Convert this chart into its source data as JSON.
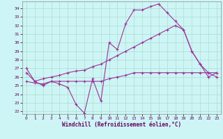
{
  "xlabel": "Windchill (Refroidissement éolien,°C)",
  "background_color": "#cef5f5",
  "grid_color": "#aaddcc",
  "line_color": "#993399",
  "xlim": [
    -0.5,
    23.5
  ],
  "ylim": [
    21.7,
    34.8
  ],
  "yticks": [
    22,
    23,
    24,
    25,
    26,
    27,
    28,
    29,
    30,
    31,
    32,
    33,
    34
  ],
  "xticks": [
    0,
    1,
    2,
    3,
    4,
    5,
    6,
    7,
    8,
    9,
    10,
    11,
    12,
    13,
    14,
    15,
    16,
    17,
    18,
    19,
    20,
    21,
    22,
    23
  ],
  "series1_x": [
    0,
    1,
    2,
    3,
    4,
    5,
    6,
    7,
    8,
    9,
    10,
    11,
    12,
    13,
    14,
    15,
    16,
    17,
    18,
    19,
    20,
    21,
    22,
    23
  ],
  "series1_y": [
    27.0,
    25.5,
    25.0,
    25.5,
    25.2,
    24.8,
    22.8,
    21.8,
    25.8,
    23.2,
    30.0,
    29.2,
    32.2,
    33.8,
    33.8,
    34.2,
    34.5,
    33.5,
    32.5,
    31.5,
    29.0,
    27.5,
    26.0,
    26.5
  ],
  "series2_x": [
    0,
    1,
    2,
    3,
    4,
    5,
    6,
    7,
    8,
    9,
    10,
    11,
    12,
    13,
    14,
    15,
    16,
    17,
    18,
    19,
    20,
    21,
    22,
    23
  ],
  "series2_y": [
    25.5,
    25.3,
    25.2,
    25.5,
    25.5,
    25.5,
    25.5,
    25.5,
    25.5,
    25.5,
    25.8,
    26.0,
    26.2,
    26.5,
    26.5,
    26.5,
    26.5,
    26.5,
    26.5,
    26.5,
    26.5,
    26.5,
    26.5,
    26.5
  ],
  "series3_x": [
    0,
    1,
    2,
    3,
    4,
    5,
    6,
    7,
    8,
    9,
    10,
    11,
    12,
    13,
    14,
    15,
    16,
    17,
    18,
    19,
    20,
    21,
    22,
    23
  ],
  "series3_y": [
    26.5,
    25.5,
    25.8,
    26.0,
    26.2,
    26.5,
    26.7,
    26.8,
    27.2,
    27.5,
    28.0,
    28.5,
    29.0,
    29.5,
    30.0,
    30.5,
    31.0,
    31.5,
    32.0,
    31.5,
    29.0,
    27.5,
    26.5,
    26.0
  ]
}
